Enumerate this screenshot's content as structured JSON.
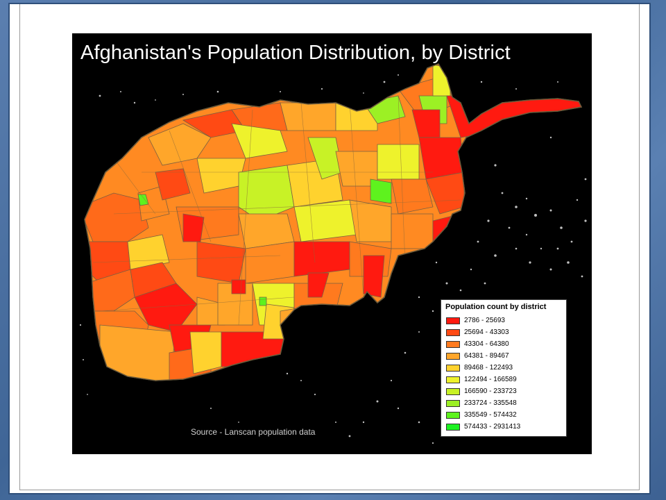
{
  "map": {
    "title": "Afghanistan's Population Distribution, by District",
    "source": "Source - Lanscan population data",
    "region": "Afghanistan",
    "background_color": "#000000",
    "border_color": "#6b5a3a"
  },
  "legend": {
    "title": "Population count by district",
    "classes": [
      {
        "label": "2786 - 25693",
        "color": "#ff1a10"
      },
      {
        "label": "25694 - 43303",
        "color": "#ff4a14"
      },
      {
        "label": "43304 - 64380",
        "color": "#ff7a1e"
      },
      {
        "label": "64381 - 89467",
        "color": "#ffa62a"
      },
      {
        "label": "89468 - 122493",
        "color": "#ffd22e"
      },
      {
        "label": "122494 - 166589",
        "color": "#eef22c"
      },
      {
        "label": "166590 - 233723",
        "color": "#c8f226"
      },
      {
        "label": "233724 - 335548",
        "color": "#9cf024"
      },
      {
        "label": "335549 - 574432",
        "color": "#5ef21e"
      },
      {
        "label": "574433 - 2931413",
        "color": "#1cf222"
      }
    ]
  }
}
